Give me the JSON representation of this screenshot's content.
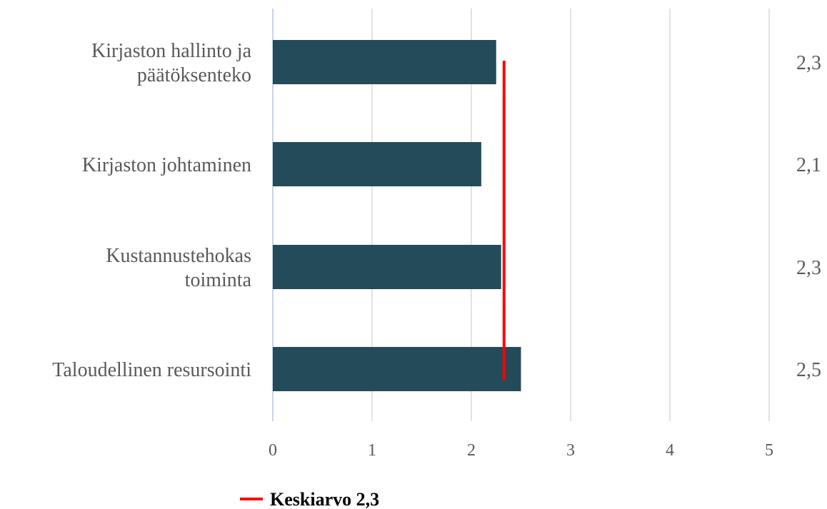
{
  "chart_data": {
    "type": "bar",
    "orientation": "horizontal",
    "categories": [
      [
        "Kirjaston hallinto ja",
        "päätöksenteko"
      ],
      [
        "Kirjaston johtaminen"
      ],
      [
        "Kustannustehokas",
        "toiminta"
      ],
      [
        "Taloudellinen resursointi"
      ]
    ],
    "values": [
      2.25,
      2.1,
      2.3,
      2.5
    ],
    "value_labels": [
      "2,3",
      "2,1",
      "2,3",
      "2,5"
    ],
    "reference_line": {
      "name": "Keskiarvo 2,3",
      "value": 2.33
    },
    "xlim": [
      0,
      5
    ],
    "xticks": [
      "0",
      "1",
      "2",
      "3",
      "4",
      "5"
    ],
    "grid": "vertical",
    "legend_position": "bottom",
    "colors": {
      "bar": "#234b59",
      "reference_line": "#ff0000",
      "grid": "#d9d9d9",
      "axis": "#b4c7e7",
      "text": "#595959"
    }
  }
}
